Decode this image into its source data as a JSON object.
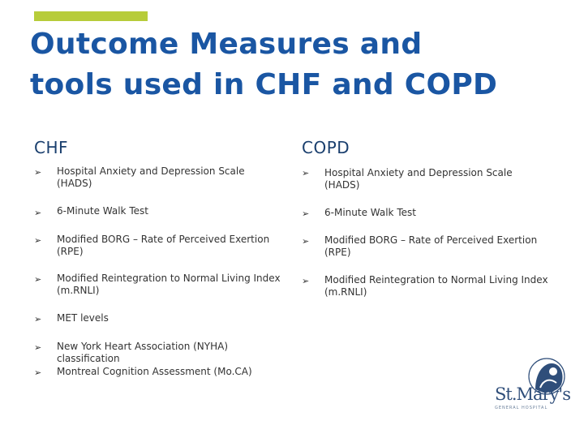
{
  "title_line1": "Outcome Measures and",
  "title_line2": "tools used in CHF and COPD",
  "chf": {
    "heading": "CHF",
    "items": [
      "Hospital Anxiety and Depression Scale (HADS)",
      "6-Minute Walk Test",
      "Modified BORG – Rate of Perceived Exertion (RPE)",
      "Modified Reintegration to Normal Living Index (m.RNLI)",
      "MET levels",
      "New York Heart Association (NYHA) classification",
      "Montreal Cognition Assessment (Mo.CA)"
    ]
  },
  "copd": {
    "heading": "COPD",
    "items": [
      "Hospital Anxiety and Depression Scale (HADS)",
      "6-Minute Walk Test",
      "Modified BORG – Rate of Perceived Exertion (RPE)",
      "Modified Reintegration to Normal Living Index (m.RNLI)"
    ]
  },
  "bullet_glyph": "➢",
  "logo": {
    "name": "St.Mary's",
    "subtitle": "GENERAL HOSPITAL"
  },
  "colors": {
    "title": "#1a56a3",
    "accent": "#b7cc3a",
    "heading": "#1a3f6e"
  }
}
